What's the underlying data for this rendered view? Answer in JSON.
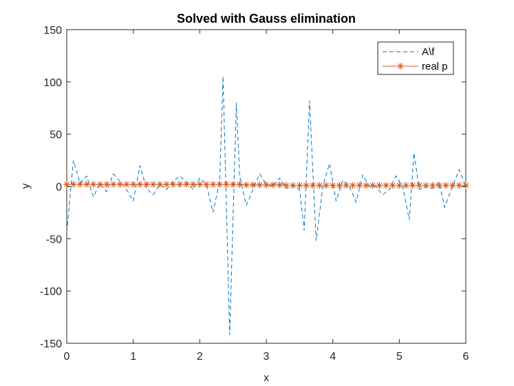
{
  "chart_data": {
    "type": "line",
    "title": "Solved with Gauss elimination",
    "xlabel": "x",
    "ylabel": "y",
    "xlim": [
      0,
      6
    ],
    "ylim": [
      -150,
      150
    ],
    "xticks": [
      "0",
      "1",
      "2",
      "3",
      "4",
      "5",
      "6"
    ],
    "yticks": [
      "-150",
      "-100",
      "-50",
      "0",
      "50",
      "100",
      "150"
    ],
    "legend_position": "top-right",
    "grid": false,
    "series": [
      {
        "name": "A\\f",
        "style": "dashed",
        "marker": "none",
        "color": "#0072BD",
        "x": [
          0,
          0.1,
          0.2,
          0.3,
          0.4,
          0.5,
          0.6,
          0.7,
          0.8,
          0.9,
          1.0,
          1.1,
          1.2,
          1.3,
          1.4,
          1.5,
          1.6,
          1.7,
          1.8,
          1.9,
          2.0,
          2.1,
          2.2,
          2.3,
          2.35,
          2.45,
          2.55,
          2.6,
          2.7,
          2.8,
          2.9,
          3.0,
          3.1,
          3.2,
          3.3,
          3.4,
          3.5,
          3.57,
          3.65,
          3.75,
          3.85,
          3.95,
          4.05,
          4.15,
          4.25,
          4.35,
          4.45,
          4.55,
          4.65,
          4.75,
          4.85,
          4.95,
          5.05,
          5.15,
          5.22,
          5.3,
          5.4,
          5.5,
          5.6,
          5.68,
          5.8,
          5.9,
          6.0
        ],
        "y": [
          -44,
          25,
          3,
          10,
          -10,
          3,
          -5,
          12,
          5,
          -3,
          -14,
          20,
          -2,
          -8,
          2,
          -3,
          5,
          10,
          4,
          -3,
          8,
          2,
          -25,
          6,
          105,
          -142,
          80,
          10,
          -18,
          -3,
          12,
          2,
          0,
          8,
          -2,
          1,
          -3,
          -42,
          82,
          -52,
          0,
          22,
          -14,
          6,
          0,
          -15,
          11,
          0,
          0,
          -8,
          -3,
          10,
          0,
          -32,
          32,
          -3,
          0,
          -2,
          4,
          -20,
          0,
          16,
          0
        ]
      },
      {
        "name": "real p",
        "style": "solid",
        "marker": "asterisk",
        "color": "#D95319",
        "x": [
          0,
          0.1,
          0.2,
          0.3,
          0.4,
          0.5,
          0.6,
          0.7,
          0.8,
          0.9,
          1.0,
          1.1,
          1.2,
          1.3,
          1.4,
          1.5,
          1.6,
          1.7,
          1.8,
          1.9,
          2.0,
          2.1,
          2.2,
          2.3,
          2.4,
          2.5,
          2.6,
          2.7,
          2.8,
          2.9,
          3.0,
          3.1,
          3.2,
          3.3,
          3.4,
          3.5,
          3.6,
          3.7,
          3.8,
          3.9,
          4.0,
          4.1,
          4.2,
          4.3,
          4.4,
          4.5,
          4.6,
          4.7,
          4.8,
          4.9,
          5.0,
          5.1,
          5.2,
          5.3,
          5.4,
          5.5,
          5.6,
          5.7,
          5.8,
          5.9,
          6.0
        ],
        "y": [
          2,
          2,
          2,
          2,
          2,
          2,
          2,
          2,
          2,
          2,
          2,
          2,
          2,
          2,
          2,
          2,
          2,
          2,
          2,
          2,
          2,
          2,
          2,
          2,
          2,
          2,
          2,
          1.5,
          1.5,
          1.5,
          1.5,
          1.5,
          1.5,
          1,
          1,
          1,
          1,
          1,
          1,
          1,
          1,
          1,
          1,
          1,
          1,
          1,
          1,
          1,
          1,
          1,
          1,
          1,
          1,
          1,
          1,
          1,
          1,
          1,
          1,
          1,
          1
        ]
      }
    ]
  }
}
